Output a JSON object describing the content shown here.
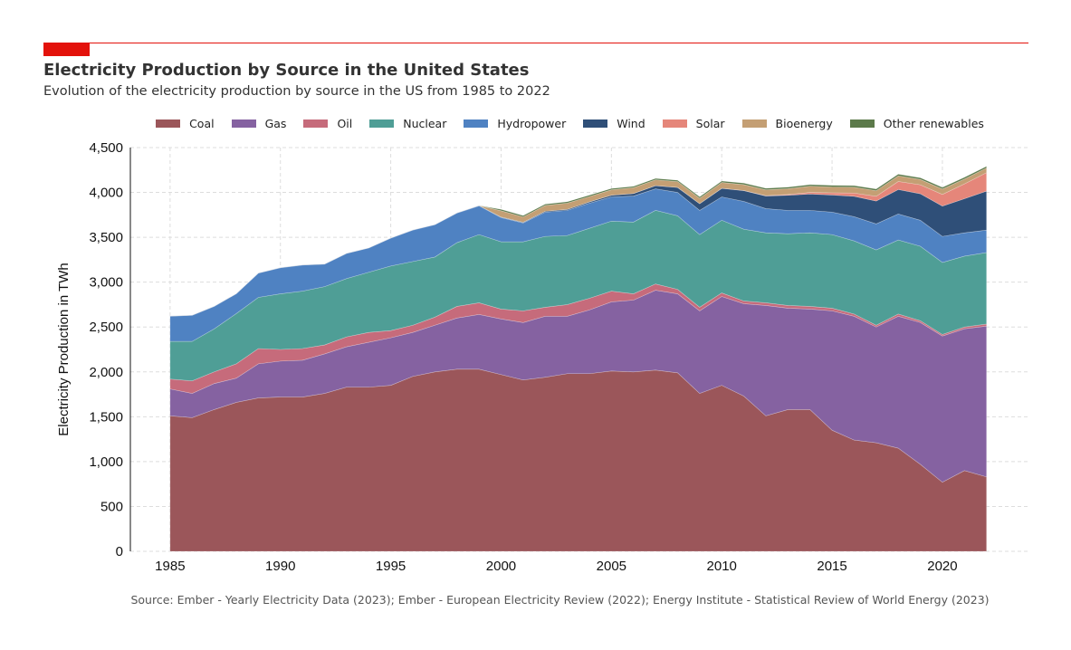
{
  "title": "Electricity Production by Source in the United States",
  "subtitle": "Evolution of the electricity production by source in the US from 1985 to 2022",
  "source": "Source: Ember - Yearly Electricity Data (2023); Ember - European Electricity Review (2022); Energy Institute - Statistical Review of World Energy (2023)",
  "chart_data": {
    "type": "area",
    "stacked": true,
    "title": "Electricity Production by Source in the United States",
    "ylabel": "Electricity Production in TWh",
    "xlabel": "",
    "xlim": [
      1983.2,
      2023.9
    ],
    "ylim": [
      0,
      4500
    ],
    "xticks": [
      1985,
      1990,
      1995,
      2000,
      2005,
      2010,
      2015,
      2020
    ],
    "yticks": [
      0,
      500,
      1000,
      1500,
      2000,
      2500,
      3000,
      3500,
      4000,
      4500
    ],
    "ytick_labels": [
      "0",
      "500",
      "1,000",
      "1,500",
      "2,000",
      "2,500",
      "3,000",
      "3,500",
      "4,000",
      "4,500"
    ],
    "grid": true,
    "legend_position": "top",
    "x": [
      1985,
      1986,
      1987,
      1988,
      1989,
      1990,
      1991,
      1992,
      1993,
      1994,
      1995,
      1996,
      1997,
      1998,
      1999,
      2000,
      2001,
      2002,
      2003,
      2004,
      2005,
      2006,
      2007,
      2008,
      2009,
      2010,
      2011,
      2012,
      2013,
      2014,
      2015,
      2016,
      2017,
      2018,
      2019,
      2020,
      2021,
      2022
    ],
    "series": [
      {
        "name": "Coal",
        "color": "#9b565a",
        "values": [
          1510,
          1490,
          1580,
          1660,
          1710,
          1720,
          1720,
          1760,
          1830,
          1830,
          1850,
          1950,
          2000,
          2030,
          2030,
          1970,
          1910,
          1940,
          1980,
          1980,
          2010,
          2000,
          2020,
          1990,
          1760,
          1850,
          1730,
          1510,
          1580,
          1580,
          1350,
          1240,
          1210,
          1150,
          970,
          770,
          900,
          830
        ]
      },
      {
        "name": "Gas",
        "color": "#8562a1",
        "values": [
          300,
          270,
          290,
          270,
          380,
          400,
          410,
          440,
          450,
          500,
          530,
          490,
          520,
          570,
          610,
          620,
          640,
          680,
          640,
          710,
          770,
          800,
          890,
          880,
          920,
          990,
          1030,
          1230,
          1130,
          1120,
          1330,
          1380,
          1290,
          1470,
          1580,
          1630,
          1580,
          1680
        ]
      },
      {
        "name": "Oil",
        "color": "#c66b7b",
        "values": [
          110,
          140,
          130,
          160,
          170,
          130,
          130,
          100,
          110,
          110,
          80,
          80,
          90,
          130,
          130,
          110,
          130,
          100,
          130,
          130,
          120,
          70,
          70,
          50,
          40,
          40,
          30,
          30,
          30,
          30,
          30,
          25,
          20,
          25,
          20,
          17,
          20,
          23
        ]
      },
      {
        "name": "Nuclear",
        "color": "#4f9e96",
        "values": [
          420,
          440,
          480,
          560,
          570,
          620,
          640,
          650,
          650,
          670,
          720,
          710,
          670,
          710,
          760,
          750,
          770,
          790,
          770,
          780,
          780,
          800,
          820,
          820,
          810,
          810,
          800,
          780,
          800,
          820,
          820,
          815,
          840,
          825,
          830,
          803,
          790,
          797
        ]
      },
      {
        "name": "Hydropower",
        "color": "#4f82c2",
        "values": [
          280,
          290,
          250,
          220,
          270,
          290,
          290,
          250,
          280,
          270,
          310,
          350,
          360,
          330,
          320,
          270,
          210,
          270,
          280,
          280,
          270,
          290,
          240,
          260,
          270,
          260,
          310,
          270,
          260,
          250,
          250,
          270,
          290,
          290,
          290,
          290,
          260,
          250
        ]
      },
      {
        "name": "Wind",
        "color": "#2f4f78",
        "values": [
          3,
          3,
          3,
          3,
          3,
          3,
          3,
          3,
          3,
          3,
          3,
          3,
          3,
          3,
          4,
          6,
          7,
          10,
          11,
          14,
          18,
          27,
          35,
          55,
          74,
          95,
          120,
          140,
          168,
          182,
          191,
          227,
          254,
          272,
          295,
          338,
          380,
          435
        ]
      },
      {
        "name": "Solar",
        "color": "#e5867a",
        "values": [
          0,
          0,
          0,
          0,
          0,
          0,
          0,
          0,
          0,
          0,
          0,
          0,
          0,
          0,
          0,
          0,
          0,
          0,
          0,
          0,
          1,
          1,
          1,
          1,
          1,
          1,
          2,
          4,
          9,
          18,
          25,
          36,
          53,
          90,
          100,
          130,
          165,
          205
        ]
      },
      {
        "name": "Bioenergy",
        "color": "#c49f74",
        "values": [
          0,
          0,
          0,
          0,
          0,
          0,
          0,
          0,
          0,
          0,
          0,
          0,
          0,
          0,
          0,
          70,
          60,
          65,
          70,
          60,
          60,
          65,
          65,
          65,
          60,
          65,
          65,
          65,
          65,
          70,
          65,
          65,
          63,
          63,
          60,
          60,
          55,
          53
        ]
      },
      {
        "name": "Other renewables",
        "color": "#5c7a4a",
        "values": [
          0,
          0,
          0,
          0,
          0,
          0,
          0,
          0,
          0,
          0,
          0,
          0,
          0,
          0,
          0,
          15,
          15,
          15,
          15,
          15,
          15,
          15,
          15,
          15,
          16,
          16,
          17,
          17,
          17,
          17,
          18,
          18,
          18,
          18,
          18,
          18,
          18,
          18
        ]
      }
    ]
  }
}
